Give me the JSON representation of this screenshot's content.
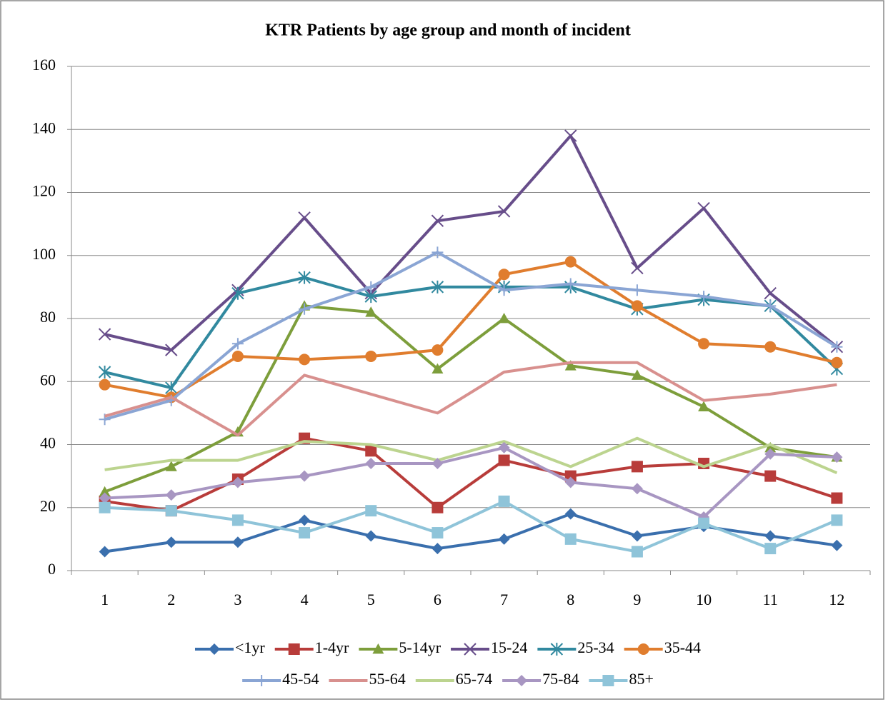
{
  "chart_data": {
    "type": "line",
    "title": "KTR Patients by age group and month of incident",
    "categories": [
      1,
      2,
      3,
      4,
      5,
      6,
      7,
      8,
      9,
      10,
      11,
      12
    ],
    "ylim": [
      0,
      160
    ],
    "yticks": [
      0,
      20,
      40,
      60,
      80,
      100,
      120,
      140,
      160
    ],
    "grid": true,
    "legend": "bottom",
    "series": [
      {
        "name": "<1yr",
        "color": "#3a6fad",
        "marker": "diamond",
        "values": [
          6,
          9,
          9,
          16,
          11,
          7,
          10,
          18,
          11,
          14,
          11,
          8
        ]
      },
      {
        "name": "1-4yr",
        "color": "#b83c3a",
        "marker": "square",
        "values": [
          22,
          19,
          29,
          42,
          38,
          20,
          35,
          30,
          33,
          34,
          30,
          23
        ]
      },
      {
        "name": "5-14yr",
        "color": "#7d9e3b",
        "marker": "triangle",
        "values": [
          25,
          33,
          44,
          84,
          82,
          64,
          80,
          65,
          62,
          52,
          39,
          36
        ]
      },
      {
        "name": "15-24",
        "color": "#674d8a",
        "marker": "x",
        "values": [
          75,
          70,
          89,
          112,
          88,
          111,
          114,
          138,
          96,
          115,
          88,
          71
        ]
      },
      {
        "name": "25-34",
        "color": "#31899f",
        "marker": "star",
        "values": [
          63,
          58,
          88,
          93,
          87,
          90,
          90,
          90,
          83,
          86,
          84,
          64
        ]
      },
      {
        "name": "35-44",
        "color": "#e07d2e",
        "marker": "circle",
        "values": [
          59,
          55,
          68,
          67,
          68,
          70,
          94,
          98,
          84,
          72,
          71,
          66
        ]
      },
      {
        "name": "45-54",
        "color": "#8aa5d4",
        "marker": "plus",
        "values": [
          48,
          54,
          72,
          83,
          90,
          101,
          89,
          91,
          89,
          87,
          84,
          71
        ]
      },
      {
        "name": "55-64",
        "color": "#d8908e",
        "marker": "none",
        "values": [
          49,
          55,
          43,
          62,
          56,
          50,
          63,
          66,
          66,
          54,
          56,
          59
        ]
      },
      {
        "name": "65-74",
        "color": "#bcd48f",
        "marker": "none",
        "values": [
          32,
          35,
          35,
          41,
          40,
          35,
          41,
          33,
          42,
          33,
          40,
          31
        ]
      },
      {
        "name": "75-84",
        "color": "#a896c2",
        "marker": "diamond",
        "values": [
          23,
          24,
          28,
          30,
          34,
          34,
          39,
          28,
          26,
          17,
          37,
          36
        ]
      },
      {
        "name": "85+",
        "color": "#8fc4d9",
        "marker": "square",
        "values": [
          20,
          19,
          16,
          12,
          19,
          12,
          22,
          10,
          6,
          15,
          7,
          16
        ]
      }
    ]
  }
}
